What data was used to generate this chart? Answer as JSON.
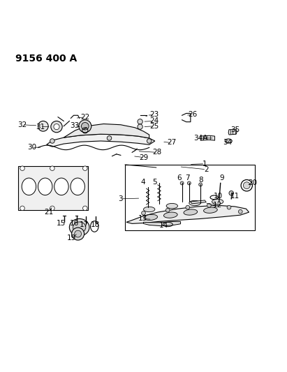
{
  "title": "9156 400 A",
  "bg_color": "#ffffff",
  "line_color": "#000000",
  "label_color": "#000000",
  "title_fontsize": 10,
  "label_fontsize": 7.5,
  "fig_width": 4.11,
  "fig_height": 5.33,
  "dpi": 100
}
